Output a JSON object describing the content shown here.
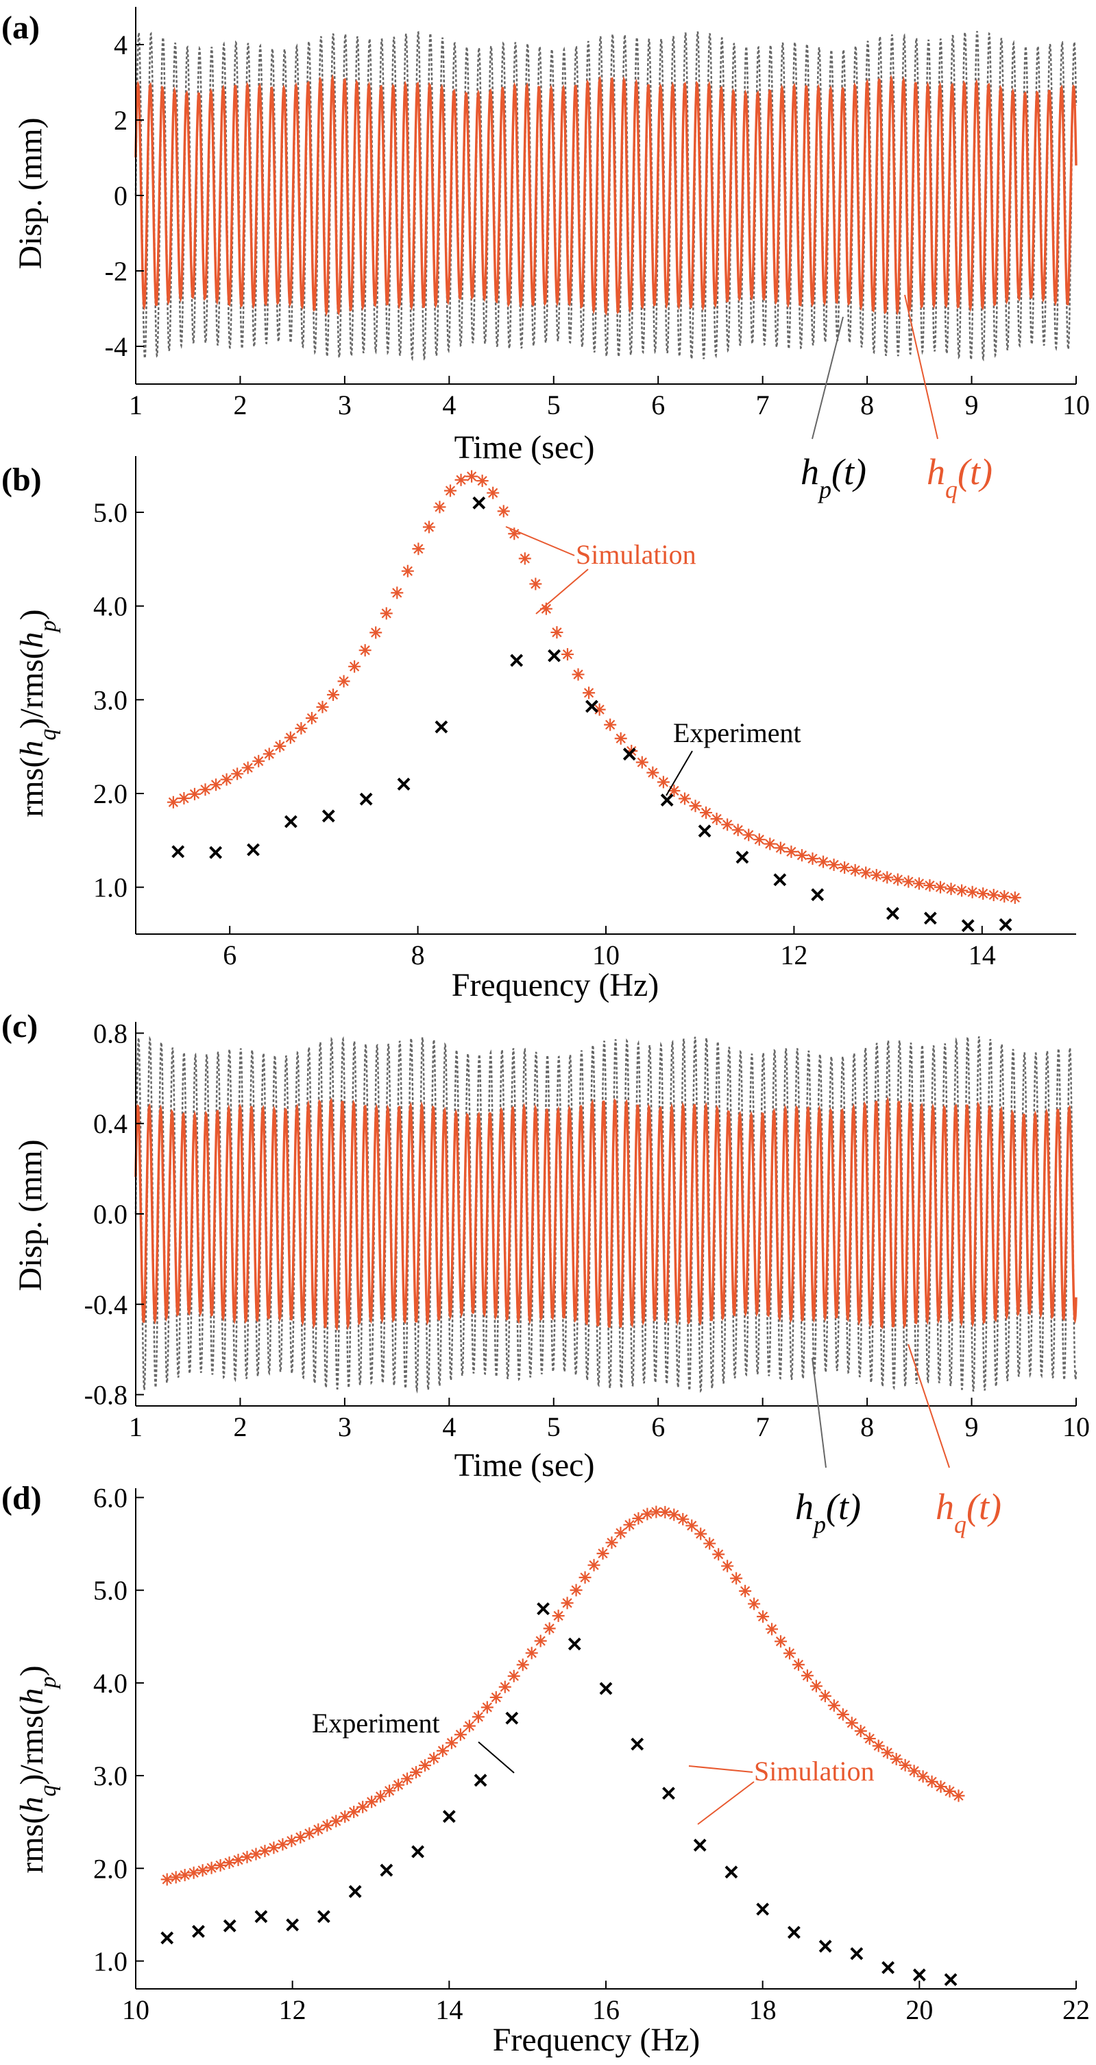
{
  "colors": {
    "experiment": "#000000",
    "simulation": "#e8592f",
    "hp": "#666666",
    "hq": "#e8592f"
  },
  "chart_data": [
    {
      "panel": "(a)",
      "type": "line",
      "xlabel": "Time (sec)",
      "ylabel": "Disp. (mm)",
      "xlim": [
        1,
        10
      ],
      "ylim": [
        -5,
        5
      ],
      "xticks": [
        1,
        2,
        3,
        4,
        5,
        6,
        7,
        8,
        9,
        10
      ],
      "xtick_labels": [
        "1",
        "2",
        "3",
        "4",
        "5",
        "6",
        "7",
        "8",
        "9",
        "10"
      ],
      "yticks": [
        -4,
        -2,
        0,
        2,
        4
      ],
      "ytick_labels": [
        "-4",
        "-2",
        "0",
        "2",
        "4"
      ],
      "series": [
        {
          "name": "h_p(t)",
          "label_main": "h",
          "label_sub": "p",
          "label_arg": "(t)",
          "style": "dotted",
          "color": "#666666",
          "frequency_hz": 8.6,
          "amplitude_mm": 4.1
        },
        {
          "name": "h_q(t)",
          "label_main": "h",
          "label_sub": "q",
          "label_arg": "(t)",
          "style": "solid",
          "color": "#e8592f",
          "frequency_hz": 8.6,
          "amplitude_mm": 2.9
        }
      ]
    },
    {
      "panel": "(b)",
      "type": "scatter",
      "xlabel": "Frequency (Hz)",
      "ylabel": "rms(h_q)/rms(h_p)",
      "ylabel_parts": [
        "rms(",
        "h",
        "q",
        ")/rms(",
        "h",
        "p",
        ")"
      ],
      "xlim": [
        5,
        15
      ],
      "ylim": [
        0.5,
        5.6
      ],
      "xticks": [
        6,
        8,
        10,
        12,
        14
      ],
      "xtick_labels": [
        "6",
        "8",
        "10",
        "12",
        "14"
      ],
      "yticks": [
        1,
        2,
        3,
        4,
        5
      ],
      "ytick_labels": [
        "1.0",
        "2.0",
        "3.0",
        "4.0",
        "5.0"
      ],
      "annotations": {
        "experiment": "Experiment",
        "simulation": "Simulation"
      },
      "series": [
        {
          "name": "Experiment",
          "marker": "x",
          "color": "#000000",
          "x": [
            5.45,
            5.85,
            6.25,
            6.65,
            7.05,
            7.45,
            7.85,
            8.25,
            8.65,
            9.05,
            9.45,
            9.85,
            10.25,
            10.65,
            11.05,
            11.45,
            11.85,
            12.25,
            13.05,
            13.45,
            13.85,
            14.25
          ],
          "y": [
            1.38,
            1.37,
            1.4,
            1.7,
            1.76,
            1.94,
            2.1,
            2.71,
            5.1,
            3.42,
            3.47,
            2.93,
            2.42,
            1.93,
            1.6,
            1.32,
            1.08,
            0.92,
            0.72,
            0.67,
            0.59,
            0.6
          ]
        },
        {
          "name": "Simulation",
          "marker": "*",
          "color": "#e8592f",
          "model": "resonance",
          "fn": 8.65,
          "zeta": 0.1,
          "peak": 5.36,
          "x_start": 5.4,
          "x_end": 14.35,
          "count": 80
        }
      ]
    },
    {
      "panel": "(c)",
      "type": "line",
      "xlabel": "Time (sec)",
      "ylabel": "Disp. (mm)",
      "xlim": [
        1,
        10
      ],
      "ylim": [
        -0.85,
        0.85
      ],
      "xticks": [
        1,
        2,
        3,
        4,
        5,
        6,
        7,
        8,
        9,
        10
      ],
      "xtick_labels": [
        "1",
        "2",
        "3",
        "4",
        "5",
        "6",
        "7",
        "8",
        "9",
        "10"
      ],
      "yticks": [
        -0.8,
        -0.4,
        0,
        0.4,
        0.8
      ],
      "ytick_labels": [
        "-0.8",
        "-0.4",
        "0.0",
        "0.4",
        "0.8"
      ],
      "series": [
        {
          "name": "h_p(t)",
          "label_main": "h",
          "label_sub": "p",
          "label_arg": "(t)",
          "style": "dotted",
          "color": "#666666",
          "frequency_hz": 9.2,
          "amplitude_mm": 0.74
        },
        {
          "name": "h_q(t)",
          "label_main": "h",
          "label_sub": "q",
          "label_arg": "(t)",
          "style": "solid",
          "color": "#e8592f",
          "frequency_hz": 9.2,
          "amplitude_mm": 0.47
        }
      ]
    },
    {
      "panel": "(d)",
      "type": "scatter",
      "xlabel": "Frequency (Hz)",
      "ylabel": "rms(h_q)/rms(h_p)",
      "ylabel_parts": [
        "rms(",
        "h",
        "q",
        ")/rms(",
        "h",
        "p",
        ")"
      ],
      "xlim": [
        10,
        22
      ],
      "ylim": [
        0.7,
        6.1
      ],
      "xticks": [
        10,
        12,
        14,
        16,
        18,
        20,
        22
      ],
      "xtick_labels": [
        "10",
        "12",
        "14",
        "16",
        "18",
        "20",
        "22"
      ],
      "yticks": [
        1,
        2,
        3,
        4,
        5,
        6
      ],
      "ytick_labels": [
        "1.0",
        "2.0",
        "3.0",
        "4.0",
        "5.0",
        "6.0"
      ],
      "annotations": {
        "experiment": "Experiment",
        "simulation": "Simulation"
      },
      "series": [
        {
          "name": "Experiment",
          "marker": "x",
          "color": "#000000",
          "x": [
            10.4,
            10.8,
            11.2,
            11.6,
            12.0,
            12.4,
            12.8,
            13.2,
            13.6,
            14.0,
            14.4,
            14.8,
            15.2,
            15.6,
            16.0,
            16.4,
            16.8,
            17.2,
            17.6,
            18.0,
            18.4,
            18.8,
            19.2,
            19.6,
            20.0,
            20.4
          ],
          "y": [
            1.25,
            1.32,
            1.38,
            1.48,
            1.39,
            1.48,
            1.75,
            1.98,
            2.18,
            2.56,
            2.95,
            3.62,
            4.8,
            4.42,
            3.94,
            3.34,
            2.81,
            2.25,
            1.96,
            1.56,
            1.31,
            1.16,
            1.08,
            0.93,
            0.85,
            0.8
          ]
        },
        {
          "name": "Simulation",
          "marker": "*",
          "color": "#e8592f",
          "model": "resonance",
          "fn": 16.85,
          "zeta": 0.1,
          "peak": 5.82,
          "base": 1.21,
          "tail": 1.33,
          "x_start": 10.4,
          "x_end": 20.5,
          "count": 90
        }
      ]
    }
  ]
}
